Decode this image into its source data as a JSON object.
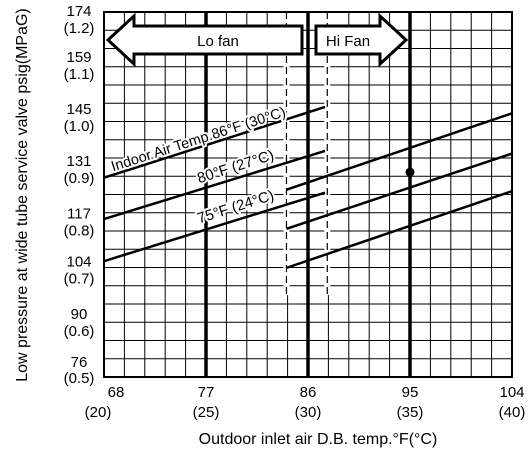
{
  "chart_data": {
    "type": "line",
    "title": "",
    "xlabel": "Outdoor inlet air D.B. temp.°F(°C)",
    "ylabel": "Low pressure at wide tube service valve psig(MPaG)",
    "xlim": [
      68,
      104
    ],
    "ylim": [
      76,
      174
    ],
    "x_ticks": [
      {
        "value": 68,
        "label": "68",
        "sub": "(20)"
      },
      {
        "value": 77,
        "label": "77",
        "sub": "(25)"
      },
      {
        "value": 86,
        "label": "86",
        "sub": "(30)"
      },
      {
        "value": 95,
        "label": "95",
        "sub": "(35)"
      },
      {
        "value": 104,
        "label": "104",
        "sub": "(40)"
      }
    ],
    "y_ticks": [
      {
        "value": 76,
        "label": "76",
        "sub": "(0.5)"
      },
      {
        "value": 90,
        "label": "90",
        "sub": "(0.6)"
      },
      {
        "value": 104,
        "label": "104",
        "sub": "(0.7)"
      },
      {
        "value": 117,
        "label": "117",
        "sub": "(0.8)"
      },
      {
        "value": 131,
        "label": "131",
        "sub": "(0.9)"
      },
      {
        "value": 145,
        "label": "145",
        "sub": "(1.0)"
      },
      {
        "value": 159,
        "label": "159",
        "sub": "(1.1)"
      },
      {
        "value": 174,
        "label": "174",
        "sub": "(1.2)"
      }
    ],
    "grid": true,
    "minor_x_step": 1.8,
    "minor_y_step": 4.9,
    "series": [
      {
        "name": "Indoor Air Temp.86°F (30°C)",
        "hi_fan": {
          "x": [
            84.1,
            104
          ],
          "y": [
            126.3,
            146.8
          ]
        },
        "lo_fan": {
          "x": [
            68,
            87.5
          ],
          "y": [
            129.5,
            148.5
          ]
        }
      },
      {
        "name": "80°F (27°C)",
        "hi_fan": {
          "x": [
            84.1,
            104
          ],
          "y": [
            115.8,
            136.0
          ]
        },
        "lo_fan": {
          "x": [
            68,
            87.5
          ],
          "y": [
            118.4,
            136.7
          ]
        }
      },
      {
        "name": "75°F (24°C)",
        "hi_fan": {
          "x": [
            84.1,
            104
          ],
          "y": [
            105.3,
            125.9
          ]
        },
        "lo_fan": {
          "x": [
            68,
            87.5
          ],
          "y": [
            107.1,
            125.5
          ]
        }
      }
    ],
    "vertical_lines": [
      {
        "x": 77,
        "style": "bold"
      },
      {
        "x": 86,
        "style": "bold"
      },
      {
        "x": 95,
        "style": "bold"
      },
      {
        "x": 84.1,
        "style": "dashed"
      },
      {
        "x": 87.7,
        "style": "dashed"
      }
    ],
    "dashed_line_range": [
      98,
      174
    ],
    "marker": {
      "x": 95,
      "y": 131
    },
    "arrows": [
      {
        "label": "Lo fan",
        "from": 68,
        "to": 86,
        "direction": "left"
      },
      {
        "label": "Hi Fan",
        "from": 86,
        "to": 95,
        "direction": "right"
      }
    ]
  }
}
